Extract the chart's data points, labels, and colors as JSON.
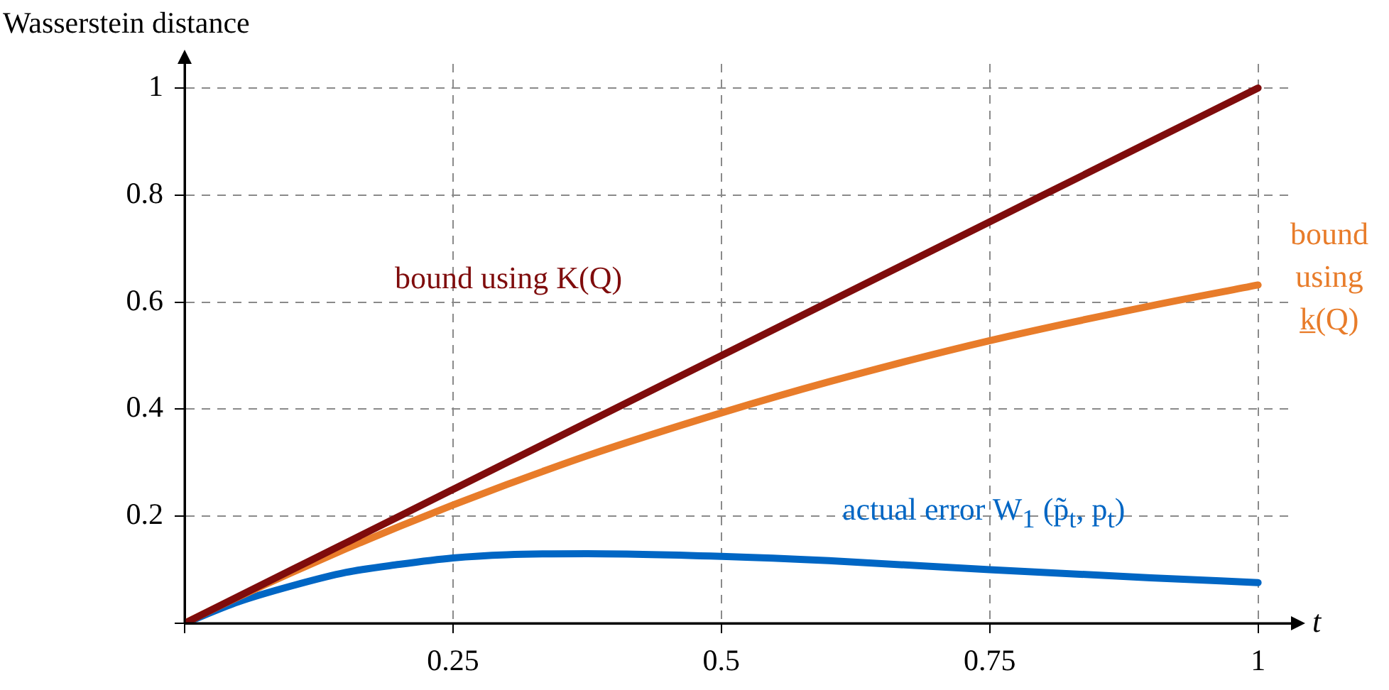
{
  "chart_data": {
    "type": "line",
    "xlabel": "t",
    "ylabel": "Wasserstein distance",
    "x": [
      0,
      0.05,
      0.1,
      0.15,
      0.2,
      0.25,
      0.3,
      0.375,
      0.5,
      0.6,
      0.75,
      0.9,
      1
    ],
    "series": [
      {
        "name": "bound using K(Q)",
        "color": "#7f0c0c",
        "values": [
          0,
          0.05,
          0.1,
          0.15,
          0.2,
          0.25,
          0.3,
          0.375,
          0.5,
          0.6,
          0.75,
          0.9,
          1
        ]
      },
      {
        "name": "bound using k̲(Q)",
        "color": "#e87c2a",
        "values": [
          0,
          0.049,
          0.095,
          0.139,
          0.181,
          0.221,
          0.259,
          0.313,
          0.393,
          0.451,
          0.528,
          0.593,
          0.632
        ]
      },
      {
        "name": "actual error W$_{1}$ (p̃$_{t}$, p$_{t}$)",
        "color": "#0066c4",
        "values": [
          0,
          0.04,
          0.07,
          0.095,
          0.11,
          0.122,
          0.128,
          0.13,
          0.125,
          0.117,
          0.1,
          0.085,
          0.076
        ]
      }
    ],
    "xlim": [
      0,
      1.032
    ],
    "ylim": [
      0,
      1.045
    ],
    "xticks": [
      {
        "value": 0,
        "label": null
      },
      0.25,
      0.5,
      0.75,
      1
    ],
    "yticks": [
      {
        "value": 0,
        "label": null
      },
      0.2,
      0.4,
      0.6,
      0.8,
      1
    ],
    "grid": true,
    "legend": false,
    "marker": "none",
    "line_style": "solid"
  }
}
